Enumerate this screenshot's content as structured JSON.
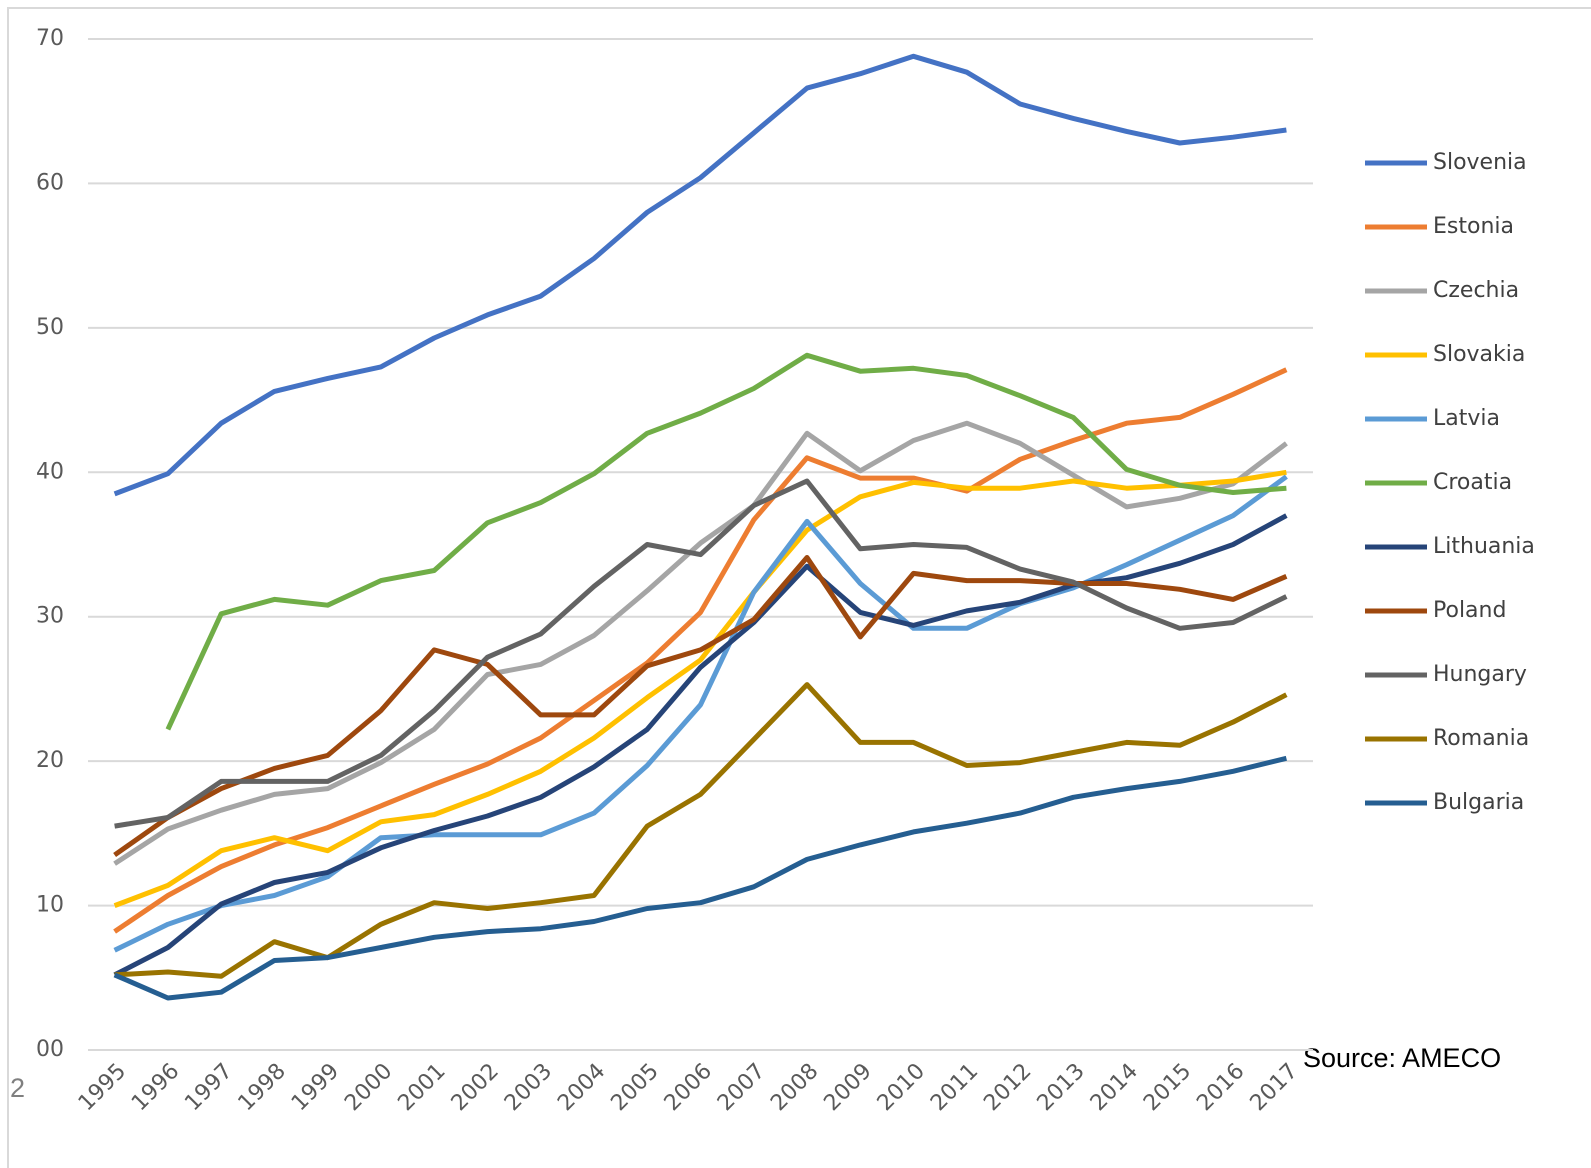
{
  "chart_data": {
    "type": "line",
    "categories": [
      "1995",
      "1996",
      "1997",
      "1998",
      "1999",
      "2000",
      "2001",
      "2002",
      "2003",
      "2004",
      "2005",
      "2006",
      "2007",
      "2008",
      "2009",
      "2010",
      "2011",
      "2012",
      "2013",
      "2014",
      "2015",
      "2016",
      "2017"
    ],
    "series": [
      {
        "name": "Slovenia",
        "color": "#4472c4",
        "values": [
          38.5,
          39.9,
          43.4,
          45.6,
          46.5,
          47.3,
          49.3,
          50.9,
          52.2,
          54.8,
          58.0,
          60.4,
          63.5,
          66.6,
          67.6,
          68.8,
          67.7,
          65.5,
          64.5,
          63.6,
          62.8,
          63.2,
          63.7
        ]
      },
      {
        "name": "Estonia",
        "color": "#ed7d31",
        "values": [
          8.2,
          10.7,
          12.7,
          14.2,
          15.4,
          16.9,
          18.4,
          19.8,
          21.6,
          24.2,
          26.8,
          30.3,
          36.7,
          41.0,
          39.6,
          39.6,
          38.7,
          40.9,
          42.2,
          43.4,
          43.8,
          45.4,
          47.1
        ]
      },
      {
        "name": "Czechia",
        "color": "#a5a5a5",
        "values": [
          12.9,
          15.3,
          16.6,
          17.7,
          18.1,
          19.9,
          22.2,
          26.0,
          26.7,
          28.7,
          31.8,
          35.1,
          37.7,
          42.7,
          40.1,
          42.2,
          43.4,
          42.0,
          39.8,
          37.6,
          38.2,
          39.2,
          42.0
        ]
      },
      {
        "name": "Slovakia",
        "color": "#ffc000",
        "values": [
          10.0,
          11.4,
          13.8,
          14.7,
          13.8,
          15.8,
          16.3,
          17.7,
          19.3,
          21.6,
          24.4,
          27.0,
          31.7,
          36.0,
          38.3,
          39.3,
          38.9,
          38.9,
          39.4,
          38.9,
          39.1,
          39.4,
          40.0
        ]
      },
      {
        "name": "Latvia",
        "color": "#5b9bd5",
        "values": [
          6.9,
          8.7,
          10.0,
          10.7,
          12.0,
          14.7,
          14.9,
          14.9,
          14.9,
          16.4,
          19.7,
          23.9,
          31.7,
          36.6,
          32.3,
          29.2,
          29.2,
          30.9,
          32.0,
          33.6,
          35.3,
          37.0,
          39.7
        ]
      },
      {
        "name": "Croatia",
        "color": "#70ad47",
        "values": [
          null,
          22.2,
          30.2,
          31.2,
          30.8,
          32.5,
          33.2,
          36.5,
          37.9,
          39.9,
          42.7,
          44.1,
          45.8,
          48.1,
          47.0,
          47.2,
          46.7,
          45.3,
          43.8,
          40.2,
          39.1,
          38.6,
          38.9
        ]
      },
      {
        "name": "Lithuania",
        "color": "#264478",
        "values": [
          5.2,
          7.1,
          10.1,
          11.6,
          12.3,
          14.0,
          15.2,
          16.2,
          17.5,
          19.6,
          22.2,
          26.5,
          29.6,
          33.5,
          30.3,
          29.4,
          30.4,
          31.0,
          32.2,
          32.7,
          33.7,
          35.0,
          37.0
        ]
      },
      {
        "name": "Poland",
        "color": "#9e480e",
        "values": [
          13.5,
          16.1,
          18.1,
          19.5,
          20.4,
          23.5,
          27.7,
          26.7,
          23.2,
          23.2,
          26.6,
          27.7,
          29.8,
          34.1,
          28.6,
          33.0,
          32.5,
          32.5,
          32.3,
          32.3,
          31.9,
          31.2,
          32.8
        ]
      },
      {
        "name": "Hungary",
        "color": "#636363",
        "values": [
          15.5,
          16.1,
          18.6,
          18.6,
          18.6,
          20.4,
          23.5,
          27.2,
          28.8,
          32.1,
          35.0,
          34.3,
          37.7,
          39.4,
          34.7,
          35.0,
          34.8,
          33.3,
          32.4,
          30.6,
          29.2,
          29.6,
          31.4
        ]
      },
      {
        "name": "Romania",
        "color": "#997300",
        "values": [
          5.2,
          5.4,
          5.1,
          7.5,
          6.4,
          8.7,
          10.2,
          9.8,
          10.2,
          10.7,
          15.5,
          17.7,
          21.5,
          25.3,
          21.3,
          21.3,
          19.7,
          19.9,
          20.6,
          21.3,
          21.1,
          22.7,
          24.6
        ]
      },
      {
        "name": "Bulgaria",
        "color": "#255e91",
        "values": [
          5.2,
          3.6,
          4.0,
          6.2,
          6.4,
          7.1,
          7.8,
          8.2,
          8.4,
          8.9,
          9.8,
          10.2,
          11.3,
          13.2,
          14.2,
          15.1,
          15.7,
          16.4,
          17.5,
          18.1,
          18.6,
          19.3,
          20.2
        ]
      }
    ],
    "ylim": [
      0,
      70
    ],
    "yticks": [
      {
        "value": 0,
        "label": "00"
      },
      10,
      20,
      30,
      40,
      50,
      60,
      70
    ],
    "grid": true,
    "legend": "right",
    "source": "Source: AMECO",
    "page_number": "2"
  }
}
